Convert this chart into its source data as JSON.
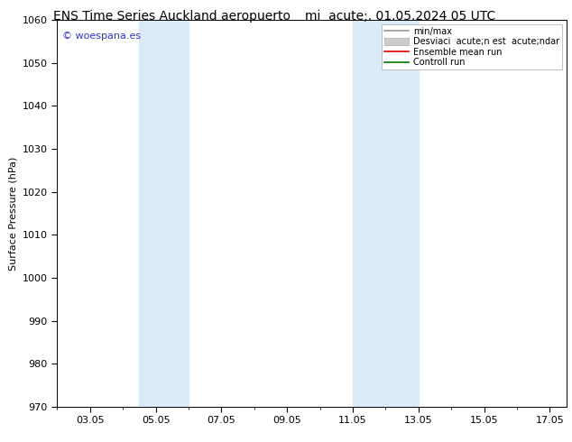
{
  "title_left": "ENS Time Series Auckland aeropuerto",
  "title_right": "mi  acute;. 01.05.2024 05 UTC",
  "ylabel": "Surface Pressure (hPa)",
  "ylim": [
    970,
    1060
  ],
  "yticks": [
    970,
    980,
    990,
    1000,
    1010,
    1020,
    1030,
    1040,
    1050,
    1060
  ],
  "xlim": [
    2.0,
    17.5
  ],
  "xtick_labels": [
    "03.05",
    "05.05",
    "07.05",
    "09.05",
    "11.05",
    "13.05",
    "15.05",
    "17.05"
  ],
  "xtick_positions_day": [
    3,
    5,
    7,
    9,
    11,
    13,
    15,
    17
  ],
  "shaded_regions": [
    {
      "start_day": 4.5,
      "end_day": 6.0
    },
    {
      "start_day": 11.0,
      "end_day": 13.0
    }
  ],
  "shaded_color": "#daeaf7",
  "legend_entries": [
    {
      "label": "min/max",
      "color": "#999999",
      "lw": 1.2,
      "type": "line"
    },
    {
      "label": "Desviaci  acute;n est  acute;ndar",
      "color": "#cccccc",
      "lw": 6,
      "type": "band"
    },
    {
      "label": "Ensemble mean run",
      "color": "#dd0000",
      "lw": 1.2,
      "type": "line"
    },
    {
      "label": "Controll run",
      "color": "#007700",
      "lw": 1.2,
      "type": "line"
    }
  ],
  "watermark": "© woespana.es",
  "watermark_color": "#3333cc",
  "background_color": "#ffffff",
  "plot_bg_color": "#ffffff",
  "tick_color": "#000000",
  "border_color": "#000000",
  "title_fontsize": 10,
  "ylabel_fontsize": 8,
  "tick_fontsize": 8,
  "legend_fontsize": 7,
  "watermark_fontsize": 8
}
